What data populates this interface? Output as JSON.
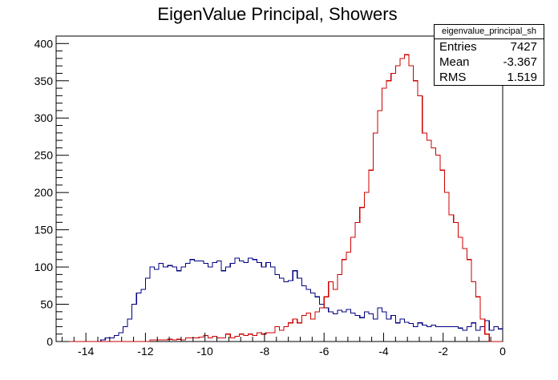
{
  "chart_data": {
    "type": "histogram",
    "title": "EigenValue Principal, Showers",
    "xlabel": "",
    "ylabel": "",
    "xlim": [
      -15,
      0
    ],
    "ylim": [
      0,
      410
    ],
    "x_ticks": [
      -14,
      -12,
      -10,
      -8,
      -6,
      -4,
      -2,
      0
    ],
    "y_ticks": [
      0,
      50,
      100,
      150,
      200,
      250,
      300,
      350,
      400
    ],
    "bin_width": 0.15,
    "grid": false,
    "series": [
      {
        "color": "#000080",
        "x_start": -15,
        "values": [
          0,
          0,
          0,
          0,
          0,
          0,
          0,
          0,
          0,
          0,
          2,
          5,
          5,
          8,
          12,
          20,
          30,
          50,
          65,
          70,
          85,
          100,
          97,
          105,
          100,
          102,
          100,
          95,
          100,
          105,
          110,
          108,
          108,
          105,
          100,
          106,
          108,
          95,
          100,
          105,
          112,
          108,
          106,
          112,
          110,
          106,
          100,
          106,
          100,
          90,
          85,
          80,
          82,
          95,
          85,
          75,
          70,
          65,
          60,
          50,
          45,
          40,
          37,
          42,
          40,
          43,
          38,
          35,
          32,
          40,
          37,
          30,
          45,
          40,
          30,
          35,
          25,
          30,
          26,
          24,
          20,
          25,
          22,
          20,
          22,
          20,
          20,
          20,
          20,
          20,
          18,
          15,
          20,
          25,
          15,
          20,
          28,
          15,
          20,
          17,
          20,
          12,
          8,
          5,
          0,
          0,
          0,
          0,
          0,
          0
        ],
        "values_range": "x from -15 to 0"
      },
      {
        "color": "#cc0000",
        "x_start": -15,
        "values": [
          0,
          0,
          0,
          0,
          0,
          0,
          0,
          0,
          0,
          0,
          0,
          0,
          0,
          0,
          0,
          0,
          0,
          0,
          0,
          0,
          0,
          2,
          2,
          2,
          2,
          3,
          2,
          3,
          2,
          5,
          5,
          5,
          6,
          8,
          5,
          7,
          5,
          5,
          10,
          5,
          7,
          10,
          8,
          10,
          8,
          12,
          10,
          12,
          12,
          20,
          15,
          20,
          25,
          30,
          25,
          35,
          38,
          30,
          40,
          45,
          60,
          80,
          70,
          90,
          110,
          120,
          140,
          160,
          180,
          200,
          230,
          280,
          310,
          340,
          350,
          360,
          370,
          380,
          385,
          370,
          350,
          330,
          280,
          270,
          260,
          250,
          230,
          200,
          170,
          160,
          140,
          125,
          110,
          80,
          60,
          30,
          10,
          0,
          0,
          0,
          0,
          0,
          0,
          0,
          0,
          0,
          0,
          0,
          0,
          0
        ]
      }
    ],
    "stats_box": {
      "name": "eigenvalue_principal_sh",
      "rows": [
        {
          "label": "Entries",
          "value": "7427"
        },
        {
          "label": "Mean",
          "value": "-3.367"
        },
        {
          "label": "RMS",
          "value": "1.519"
        }
      ]
    }
  }
}
